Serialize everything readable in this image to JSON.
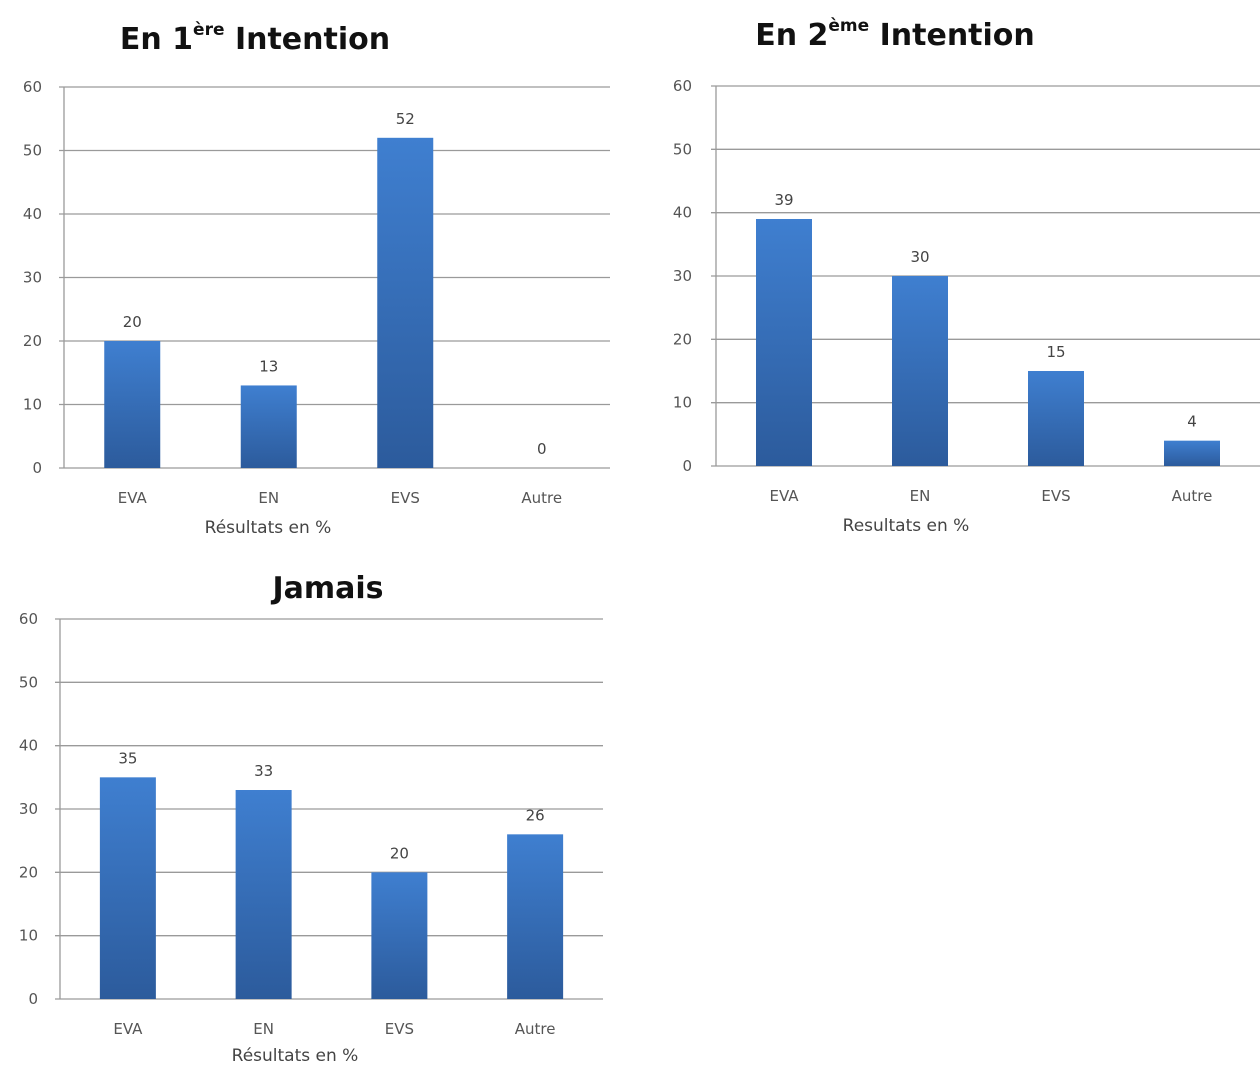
{
  "chart_data": [
    {
      "type": "bar",
      "title": "En 1ère Intention",
      "title_parts": {
        "prefix": "En 1",
        "sup": "ère",
        "suffix": " Intention"
      },
      "categories": [
        "EVA",
        "EN",
        "EVS",
        "Autre"
      ],
      "values": [
        20,
        13,
        52,
        0
      ],
      "xlabel": "Résultats en %",
      "ylabel": "",
      "ylim": [
        0,
        60
      ],
      "yticks": [
        0,
        10,
        20,
        30,
        40,
        50,
        60
      ],
      "grid": true,
      "legend": "none",
      "bar_color": "#3a78c7"
    },
    {
      "type": "bar",
      "title": "En 2ème Intention",
      "title_parts": {
        "prefix": "En 2",
        "sup": "ème",
        "suffix": " Intention"
      },
      "categories": [
        "EVA",
        "EN",
        "EVS",
        "Autre"
      ],
      "values": [
        39,
        30,
        15,
        4
      ],
      "xlabel": "Resultats en %",
      "ylabel": "",
      "ylim": [
        0,
        60
      ],
      "yticks": [
        0,
        10,
        20,
        30,
        40,
        50,
        60
      ],
      "grid": true,
      "legend": "none",
      "bar_color": "#3a78c7"
    },
    {
      "type": "bar",
      "title": "Jamais",
      "title_parts": {
        "prefix": "Jamais",
        "sup": "",
        "suffix": ""
      },
      "categories": [
        "EVA",
        "EN",
        "EVS",
        "Autre"
      ],
      "values": [
        35,
        33,
        20,
        26
      ],
      "xlabel": "Résultats en %",
      "ylabel": "",
      "ylim": [
        0,
        60
      ],
      "yticks": [
        0,
        10,
        20,
        30,
        40,
        50,
        60
      ],
      "grid": true,
      "legend": "none",
      "bar_color": "#3a78c7"
    }
  ]
}
